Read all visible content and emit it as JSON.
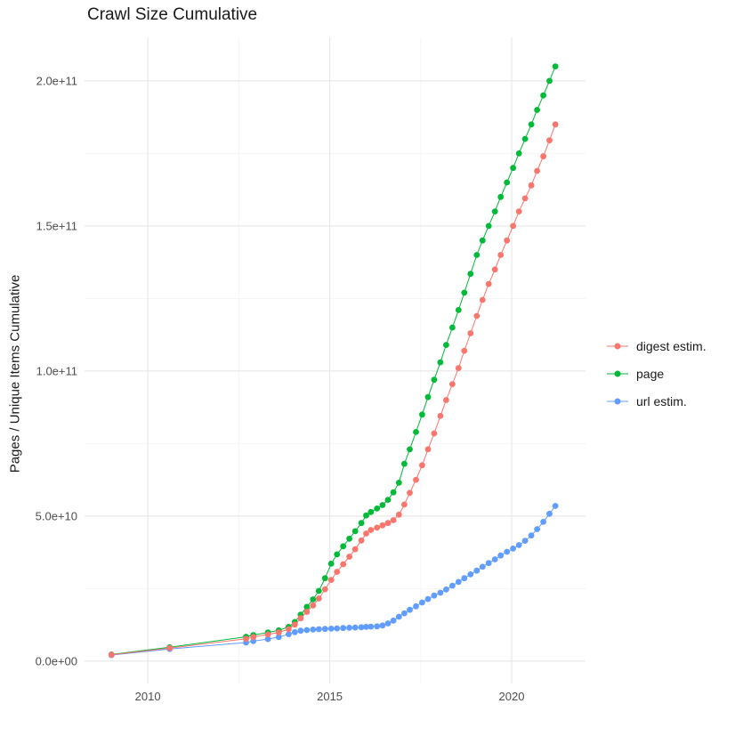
{
  "chart_data": {
    "type": "scatter",
    "title": "Crawl Size Cumulative",
    "xlabel": "",
    "ylabel": "Pages / Unique Items Cumulative",
    "xlim": [
      2008.26,
      2022.03
    ],
    "ylim": [
      -7700000000.0,
      215000000000.0
    ],
    "grid": "major+minor",
    "legend_position": "right",
    "background_color": "#FFFFFF",
    "grid_major_color": "#E8E8E8",
    "grid_minor_color": "#F3F3F3",
    "tick_label_color": "#4D4D4D",
    "x_major_ticks": [
      {
        "value": 2010,
        "label": "2010"
      },
      {
        "value": 2015,
        "label": "2015"
      },
      {
        "value": 2020,
        "label": "2020"
      }
    ],
    "x_minor_ticks": [
      2012.5,
      2017.5
    ],
    "y_major_ticks": [
      {
        "value": 0,
        "label": "0.0e+00"
      },
      {
        "value": 50000000000.0,
        "label": "5.0e+10"
      },
      {
        "value": 100000000000.0,
        "label": "1.0e+11"
      },
      {
        "value": 150000000000.0,
        "label": "1.5e+11"
      },
      {
        "value": 200000000000.0,
        "label": "2.0e+11"
      }
    ],
    "y_minor_ticks": [
      25000000000.0,
      75000000000.0,
      125000000000.0,
      175000000000.0
    ],
    "draw_order": [
      1,
      2,
      0
    ],
    "series": [
      {
        "id": "digest",
        "name": "digest estim.",
        "color": "#F8766D",
        "points": [
          [
            2009.0,
            2200000000.0
          ],
          [
            2010.6,
            4500000000.0
          ],
          [
            2012.7,
            7700000000.0
          ],
          [
            2012.9,
            8300000000.0
          ],
          [
            2013.3,
            9200000000.0
          ],
          [
            2013.6,
            9900000000.0
          ],
          [
            2013.87,
            11000000000.0
          ],
          [
            2014.04,
            12600000000.0
          ],
          [
            2014.2,
            14800000000.0
          ],
          [
            2014.37,
            17000000000.0
          ],
          [
            2014.54,
            19200000000.0
          ],
          [
            2014.7,
            21600000000.0
          ],
          [
            2014.87,
            24800000000.0
          ],
          [
            2015.04,
            28000000000.0
          ],
          [
            2015.2,
            30800000000.0
          ],
          [
            2015.37,
            33400000000.0
          ],
          [
            2015.54,
            36000000000.0
          ],
          [
            2015.7,
            38600000000.0
          ],
          [
            2015.87,
            41600000000.0
          ],
          [
            2016.0,
            44000000000.0
          ],
          [
            2016.13,
            45200000000.0
          ],
          [
            2016.3,
            46000000000.0
          ],
          [
            2016.45,
            46800000000.0
          ],
          [
            2016.6,
            47600000000.0
          ],
          [
            2016.75,
            48600000000.0
          ],
          [
            2016.9,
            50500000000.0
          ],
          [
            2017.05,
            54000000000.0
          ],
          [
            2017.2,
            58000000000.0
          ],
          [
            2017.37,
            62500000000.0
          ],
          [
            2017.54,
            67500000000.0
          ],
          [
            2017.7,
            73000000000.0
          ],
          [
            2017.87,
            78500000000.0
          ],
          [
            2018.04,
            84500000000.0
          ],
          [
            2018.2,
            90000000000.0
          ],
          [
            2018.37,
            95500000000.0
          ],
          [
            2018.54,
            101000000000.0
          ],
          [
            2018.7,
            107000000000.0
          ],
          [
            2018.87,
            113000000000.0
          ],
          [
            2019.04,
            119000000000.0
          ],
          [
            2019.2,
            124500000000.0
          ],
          [
            2019.37,
            130000000000.0
          ],
          [
            2019.54,
            135000000000.0
          ],
          [
            2019.7,
            140000000000.0
          ],
          [
            2019.87,
            145000000000.0
          ],
          [
            2020.04,
            150000000000.0
          ],
          [
            2020.2,
            155000000000.0
          ],
          [
            2020.37,
            159500000000.0
          ],
          [
            2020.54,
            164000000000.0
          ],
          [
            2020.7,
            169000000000.0
          ],
          [
            2020.87,
            174000000000.0
          ],
          [
            2021.04,
            179500000000.0
          ],
          [
            2021.2,
            185000000000.0
          ]
        ]
      },
      {
        "id": "page",
        "name": "page",
        "color": "#00BA38",
        "points": [
          [
            2009.0,
            2300000000.0
          ],
          [
            2010.6,
            4800000000.0
          ],
          [
            2012.7,
            8400000000.0
          ],
          [
            2012.9,
            9000000000.0
          ],
          [
            2013.3,
            9900000000.0
          ],
          [
            2013.6,
            10600000000.0
          ],
          [
            2013.87,
            11800000000.0
          ],
          [
            2014.04,
            13500000000.0
          ],
          [
            2014.2,
            16000000000.0
          ],
          [
            2014.37,
            18700000000.0
          ],
          [
            2014.54,
            21300000000.0
          ],
          [
            2014.7,
            24200000000.0
          ],
          [
            2014.87,
            28600000000.0
          ],
          [
            2015.04,
            33600000000.0
          ],
          [
            2015.2,
            36800000000.0
          ],
          [
            2015.37,
            39600000000.0
          ],
          [
            2015.54,
            42200000000.0
          ],
          [
            2015.7,
            44800000000.0
          ],
          [
            2015.87,
            47600000000.0
          ],
          [
            2016.0,
            50200000000.0
          ],
          [
            2016.13,
            51400000000.0
          ],
          [
            2016.3,
            52600000000.0
          ],
          [
            2016.45,
            53800000000.0
          ],
          [
            2016.6,
            55600000000.0
          ],
          [
            2016.75,
            58200000000.0
          ],
          [
            2016.9,
            61500000000.0
          ],
          [
            2017.05,
            68000000000.0
          ],
          [
            2017.2,
            73000000000.0
          ],
          [
            2017.37,
            79000000000.0
          ],
          [
            2017.54,
            85000000000.0
          ],
          [
            2017.7,
            91000000000.0
          ],
          [
            2017.87,
            97000000000.0
          ],
          [
            2018.04,
            103000000000.0
          ],
          [
            2018.2,
            109000000000.0
          ],
          [
            2018.37,
            115000000000.0
          ],
          [
            2018.54,
            121000000000.0
          ],
          [
            2018.7,
            127000000000.0
          ],
          [
            2018.87,
            133500000000.0
          ],
          [
            2019.04,
            140000000000.0
          ],
          [
            2019.2,
            145000000000.0
          ],
          [
            2019.37,
            150000000000.0
          ],
          [
            2019.54,
            155000000000.0
          ],
          [
            2019.7,
            160000000000.0
          ],
          [
            2019.87,
            165000000000.0
          ],
          [
            2020.04,
            170000000000.0
          ],
          [
            2020.2,
            175000000000.0
          ],
          [
            2020.37,
            180000000000.0
          ],
          [
            2020.54,
            185000000000.0
          ],
          [
            2020.7,
            190000000000.0
          ],
          [
            2020.87,
            195000000000.0
          ],
          [
            2021.04,
            200000000000.0
          ],
          [
            2021.2,
            205000000000.0
          ]
        ]
      },
      {
        "id": "url",
        "name": "url estim.",
        "color": "#619CFF",
        "points": [
          [
            2009.0,
            2100000000.0
          ],
          [
            2010.6,
            4200000000.0
          ],
          [
            2012.7,
            6400000000.0
          ],
          [
            2012.9,
            6900000000.0
          ],
          [
            2013.3,
            7600000000.0
          ],
          [
            2013.6,
            8300000000.0
          ],
          [
            2013.87,
            9300000000.0
          ],
          [
            2014.04,
            10000000000.0
          ],
          [
            2014.2,
            10500000000.0
          ],
          [
            2014.37,
            10700000000.0
          ],
          [
            2014.54,
            10900000000.0
          ],
          [
            2014.7,
            11000000000.0
          ],
          [
            2014.87,
            11100000000.0
          ],
          [
            2015.04,
            11200000000.0
          ],
          [
            2015.2,
            11300000000.0
          ],
          [
            2015.37,
            11400000000.0
          ],
          [
            2015.54,
            11500000000.0
          ],
          [
            2015.7,
            11600000000.0
          ],
          [
            2015.87,
            11700000000.0
          ],
          [
            2016.0,
            11800000000.0
          ],
          [
            2016.13,
            11900000000.0
          ],
          [
            2016.3,
            12000000000.0
          ],
          [
            2016.45,
            12300000000.0
          ],
          [
            2016.6,
            13000000000.0
          ],
          [
            2016.75,
            14000000000.0
          ],
          [
            2016.9,
            15300000000.0
          ],
          [
            2017.05,
            16500000000.0
          ],
          [
            2017.2,
            17700000000.0
          ],
          [
            2017.37,
            18900000000.0
          ],
          [
            2017.54,
            20200000000.0
          ],
          [
            2017.7,
            21400000000.0
          ],
          [
            2017.87,
            22600000000.0
          ],
          [
            2018.04,
            23600000000.0
          ],
          [
            2018.2,
            24700000000.0
          ],
          [
            2018.37,
            26000000000.0
          ],
          [
            2018.54,
            27300000000.0
          ],
          [
            2018.7,
            28600000000.0
          ],
          [
            2018.87,
            29900000000.0
          ],
          [
            2019.04,
            31200000000.0
          ],
          [
            2019.2,
            32500000000.0
          ],
          [
            2019.37,
            33800000000.0
          ],
          [
            2019.54,
            35100000000.0
          ],
          [
            2019.7,
            36400000000.0
          ],
          [
            2019.87,
            37700000000.0
          ],
          [
            2020.04,
            38800000000.0
          ],
          [
            2020.2,
            40000000000.0
          ],
          [
            2020.37,
            41500000000.0
          ],
          [
            2020.54,
            43300000000.0
          ],
          [
            2020.7,
            45500000000.0
          ],
          [
            2020.87,
            48000000000.0
          ],
          [
            2021.04,
            50800000000.0
          ],
          [
            2021.2,
            53500000000.0
          ]
        ]
      }
    ]
  }
}
